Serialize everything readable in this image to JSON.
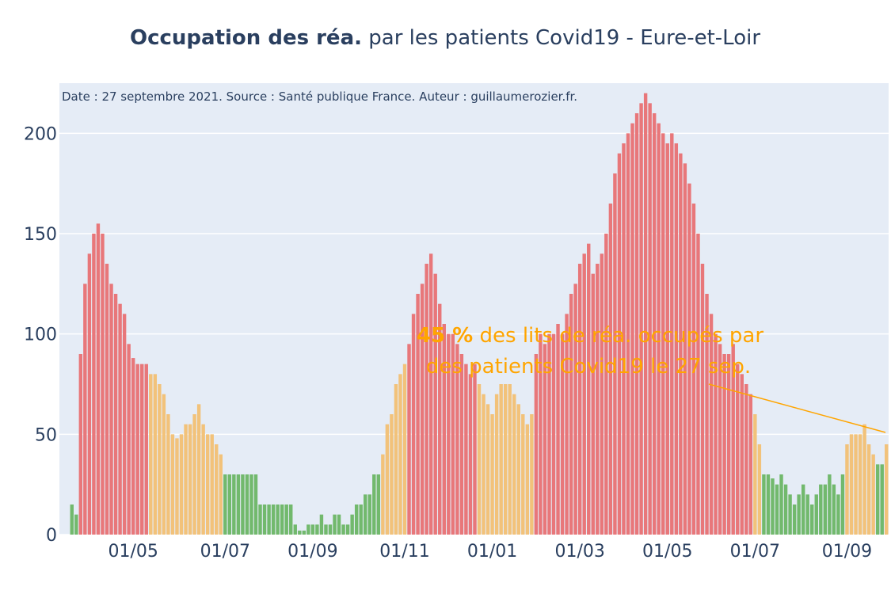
{
  "chart_data": {
    "type": "bar",
    "title_bold": "Occupation des réa.",
    "title_rest": "par les patients Covid19 - Eure-et-Loir",
    "subtitle": "Date : 27 septembre 2021. Source : Santé publique France. Auteur : guillaumerozier.fr.",
    "annotation": {
      "highlight": "45 %",
      "line1": " des lits de réa. occupés par",
      "line2": "des patients Covid19 le 27 sep.",
      "color": "#ffa500"
    },
    "ylim": [
      0,
      225
    ],
    "yticks": [
      0,
      50,
      100,
      150,
      200
    ],
    "grid": true,
    "categories": [
      null,
      null,
      null,
      null,
      null,
      null,
      null,
      null,
      null,
      null,
      null,
      null,
      null,
      null,
      "01/05",
      null,
      null,
      null,
      null,
      null,
      null,
      null,
      null,
      null,
      null,
      null,
      null,
      null,
      null,
      null,
      null,
      null,
      null,
      null,
      null,
      "01/07",
      null,
      null,
      null,
      null,
      null,
      null,
      null,
      null,
      null,
      null,
      null,
      null,
      null,
      null,
      null,
      null,
      null,
      null,
      null,
      "01/09",
      null,
      null,
      null,
      null,
      null,
      null,
      null,
      null,
      null,
      null,
      null,
      null,
      null,
      null,
      null,
      null,
      null,
      null,
      null,
      null,
      "01/11",
      null,
      null,
      null,
      null,
      null,
      null,
      null,
      null,
      null,
      null,
      null,
      null,
      null,
      null,
      null,
      null,
      null,
      null,
      null,
      "01/01",
      null,
      null,
      null,
      null,
      null,
      null,
      null,
      null,
      null,
      null,
      null,
      null,
      null,
      null,
      null,
      null,
      null,
      null,
      null,
      "01/03",
      null,
      null,
      null,
      null,
      null,
      null,
      null,
      null,
      null,
      null,
      null,
      null,
      null,
      null,
      null,
      null,
      null,
      null,
      null,
      "01/05",
      null,
      null,
      null,
      null,
      null,
      null,
      null,
      null,
      null,
      null,
      null,
      null,
      null,
      null,
      null,
      null,
      null,
      null,
      null,
      "01/07",
      null,
      null,
      null,
      null,
      null,
      null,
      null,
      null,
      null,
      null,
      null,
      null,
      null,
      null,
      null,
      null,
      null,
      null,
      null,
      null,
      "01/09",
      null,
      null,
      null,
      null,
      null,
      null,
      null,
      null,
      null
    ],
    "values": [
      15,
      10,
      90,
      125,
      140,
      150,
      155,
      150,
      135,
      125,
      120,
      115,
      110,
      95,
      88,
      85,
      85,
      85,
      80,
      80,
      75,
      70,
      60,
      50,
      48,
      50,
      55,
      55,
      60,
      65,
      55,
      50,
      50,
      45,
      40,
      30,
      30,
      30,
      30,
      30,
      30,
      30,
      30,
      15,
      15,
      15,
      15,
      15,
      15,
      15,
      15,
      5,
      2,
      2,
      5,
      5,
      5,
      10,
      5,
      5,
      10,
      10,
      5,
      5,
      10,
      15,
      15,
      20,
      20,
      30,
      30,
      40,
      55,
      60,
      75,
      80,
      85,
      95,
      110,
      120,
      125,
      135,
      140,
      130,
      115,
      105,
      100,
      100,
      95,
      90,
      85,
      80,
      85,
      75,
      70,
      65,
      60,
      70,
      75,
      75,
      75,
      70,
      65,
      60,
      55,
      60,
      90,
      100,
      95,
      100,
      100,
      105,
      100,
      110,
      120,
      125,
      135,
      140,
      145,
      130,
      135,
      140,
      150,
      165,
      180,
      190,
      195,
      200,
      205,
      210,
      215,
      220,
      215,
      210,
      205,
      200,
      195,
      200,
      195,
      190,
      185,
      175,
      165,
      150,
      135,
      120,
      110,
      100,
      95,
      90,
      90,
      95,
      85,
      80,
      75,
      70,
      60,
      45,
      30,
      30,
      28,
      25,
      30,
      25,
      20,
      15,
      20,
      25,
      20,
      15,
      20,
      25,
      25,
      30,
      25,
      20,
      30,
      45,
      50,
      50,
      50,
      55,
      45,
      40,
      35,
      35,
      45
    ],
    "colors": [
      "#72b96d",
      "#72b96d",
      "#e8777a",
      "#e8777a",
      "#e8777a",
      "#e8777a",
      "#e8777a",
      "#e8777a",
      "#e8777a",
      "#e8777a",
      "#e8777a",
      "#e8777a",
      "#e8777a",
      "#e8777a",
      "#e8777a",
      "#e8777a",
      "#e8777a",
      "#e8777a",
      "#f2c27a",
      "#f2c27a",
      "#f2c27a",
      "#f2c27a",
      "#f2c27a",
      "#f2c27a",
      "#f2c27a",
      "#f2c27a",
      "#f2c27a",
      "#f2c27a",
      "#f2c27a",
      "#f2c27a",
      "#f2c27a",
      "#f2c27a",
      "#f2c27a",
      "#f2c27a",
      "#f2c27a",
      "#72b96d",
      "#72b96d",
      "#72b96d",
      "#72b96d",
      "#72b96d",
      "#72b96d",
      "#72b96d",
      "#72b96d",
      "#72b96d",
      "#72b96d",
      "#72b96d",
      "#72b96d",
      "#72b96d",
      "#72b96d",
      "#72b96d",
      "#72b96d",
      "#72b96d",
      "#72b96d",
      "#72b96d",
      "#72b96d",
      "#72b96d",
      "#72b96d",
      "#72b96d",
      "#72b96d",
      "#72b96d",
      "#72b96d",
      "#72b96d",
      "#72b96d",
      "#72b96d",
      "#72b96d",
      "#72b96d",
      "#72b96d",
      "#72b96d",
      "#72b96d",
      "#72b96d",
      "#72b96d",
      "#f2c27a",
      "#f2c27a",
      "#f2c27a",
      "#f2c27a",
      "#f2c27a",
      "#f2c27a",
      "#e8777a",
      "#e8777a",
      "#e8777a",
      "#e8777a",
      "#e8777a",
      "#e8777a",
      "#e8777a",
      "#e8777a",
      "#e8777a",
      "#e8777a",
      "#e8777a",
      "#e8777a",
      "#e8777a",
      "#e8777a",
      "#e8777a",
      "#e8777a",
      "#f2c27a",
      "#f2c27a",
      "#f2c27a",
      "#f2c27a",
      "#f2c27a",
      "#f2c27a",
      "#f2c27a",
      "#f2c27a",
      "#f2c27a",
      "#f2c27a",
      "#f2c27a",
      "#f2c27a",
      "#f2c27a",
      "#e8777a",
      "#e8777a",
      "#e8777a",
      "#e8777a",
      "#e8777a",
      "#e8777a",
      "#e8777a",
      "#e8777a",
      "#e8777a",
      "#e8777a",
      "#e8777a",
      "#e8777a",
      "#e8777a",
      "#e8777a",
      "#e8777a",
      "#e8777a",
      "#e8777a",
      "#e8777a",
      "#e8777a",
      "#e8777a",
      "#e8777a",
      "#e8777a",
      "#e8777a",
      "#e8777a",
      "#e8777a",
      "#e8777a",
      "#e8777a",
      "#e8777a",
      "#e8777a",
      "#e8777a",
      "#e8777a",
      "#e8777a",
      "#e8777a",
      "#e8777a",
      "#e8777a",
      "#e8777a",
      "#e8777a",
      "#e8777a",
      "#e8777a",
      "#e8777a",
      "#e8777a",
      "#e8777a",
      "#e8777a",
      "#e8777a",
      "#e8777a",
      "#e8777a",
      "#e8777a",
      "#e8777a",
      "#e8777a",
      "#e8777a",
      "#f2c27a",
      "#f2c27a",
      "#72b96d",
      "#72b96d",
      "#72b96d",
      "#72b96d",
      "#72b96d",
      "#72b96d",
      "#72b96d",
      "#72b96d",
      "#72b96d",
      "#72b96d",
      "#72b96d",
      "#72b96d",
      "#72b96d",
      "#72b96d",
      "#72b96d",
      "#72b96d",
      "#72b96d",
      "#72b96d",
      "#72b96d",
      "#f2c27a",
      "#f2c27a",
      "#f2c27a",
      "#f2c27a",
      "#f2c27a",
      "#f2c27a",
      "#f2c27a",
      "#72b96d",
      "#72b96d",
      "#f2c27a"
    ]
  }
}
